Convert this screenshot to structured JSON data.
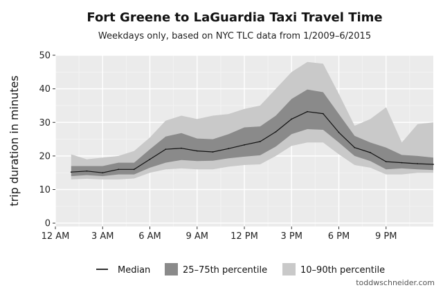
{
  "chart_data": {
    "type": "area",
    "title": "Fort Greene to LaGuardia Taxi Travel Time",
    "subtitle": "Weekdays only, based on NYC TLC data from 1/2009–6/2015",
    "xlabel": "",
    "ylabel": "trip duration in minutes",
    "xlim": [
      0,
      24
    ],
    "ylim": [
      -1,
      50
    ],
    "x_ticks": [
      0,
      3,
      6,
      9,
      12,
      15,
      18,
      21
    ],
    "x_tick_labels": [
      "12 AM",
      "3 AM",
      "6 AM",
      "9 AM",
      "12 PM",
      "3 PM",
      "6 PM",
      "9 PM"
    ],
    "y_ticks": [
      0,
      10,
      20,
      30,
      40,
      50
    ],
    "y_tick_labels": [
      "0",
      "10",
      "20",
      "30",
      "40",
      "50"
    ],
    "grid": true,
    "legend_position": "bottom",
    "x": [
      1,
      2,
      3,
      4,
      5,
      6,
      7,
      8,
      9,
      10,
      11,
      12,
      13,
      14,
      15,
      16,
      17,
      18,
      19,
      20,
      21,
      22,
      23,
      24
    ],
    "series": [
      {
        "name": "Median",
        "kind": "line",
        "color": "#111111",
        "values": [
          15.2,
          15.5,
          15.0,
          16.0,
          16.0,
          19.0,
          22.0,
          22.3,
          21.5,
          21.2,
          22.2,
          23.3,
          24.3,
          27.2,
          31.0,
          33.2,
          32.6,
          27.0,
          22.5,
          21.0,
          18.3,
          18.0,
          17.7,
          17.5
        ]
      },
      {
        "name": "25–75th percentile",
        "kind": "band",
        "color": "#8a8a8a",
        "lower": [
          14.0,
          14.3,
          14.0,
          14.5,
          14.5,
          16.5,
          18.0,
          18.8,
          18.5,
          18.6,
          19.3,
          19.8,
          20.2,
          22.8,
          26.5,
          28.0,
          27.8,
          24.0,
          20.0,
          18.5,
          16.0,
          16.3,
          16.0,
          15.8
        ],
        "upper": [
          17.0,
          17.0,
          17.0,
          18.0,
          18.0,
          22.0,
          25.8,
          26.8,
          25.2,
          25.0,
          26.5,
          28.5,
          28.8,
          32.0,
          37.0,
          39.8,
          39.0,
          32.5,
          26.0,
          24.0,
          22.5,
          20.3,
          20.0,
          19.5
        ]
      },
      {
        "name": "10–90th percentile",
        "kind": "band",
        "color": "#c9c9c9",
        "lower": [
          13.0,
          13.2,
          13.0,
          13.0,
          13.3,
          15.0,
          16.0,
          16.3,
          16.0,
          16.0,
          16.8,
          17.3,
          17.5,
          20.0,
          23.0,
          24.0,
          24.0,
          20.5,
          17.3,
          16.5,
          14.5,
          14.5,
          15.0,
          15.0
        ],
        "upper": [
          20.5,
          19.0,
          19.5,
          20.0,
          21.5,
          25.5,
          30.5,
          32.0,
          31.0,
          32.0,
          32.5,
          34.0,
          35.0,
          40.0,
          45.0,
          48.0,
          47.5,
          38.5,
          29.0,
          31.0,
          34.5,
          24.0,
          29.5,
          30.0
        ]
      }
    ]
  },
  "colors": {
    "panel_background": "#ebebeb",
    "grid_major": "#ffffff",
    "grid_minor": "#f4f4f4",
    "band_iqr": "#8a8a8a",
    "band_outer": "#c9c9c9",
    "median_line": "#111111"
  },
  "legend": {
    "items": [
      {
        "label": "Median",
        "symbol": "line"
      },
      {
        "label": "25–75th percentile",
        "symbol": "box-dark"
      },
      {
        "label": "10–90th percentile",
        "symbol": "box-light"
      }
    ]
  },
  "credit": "toddwschneider.com"
}
